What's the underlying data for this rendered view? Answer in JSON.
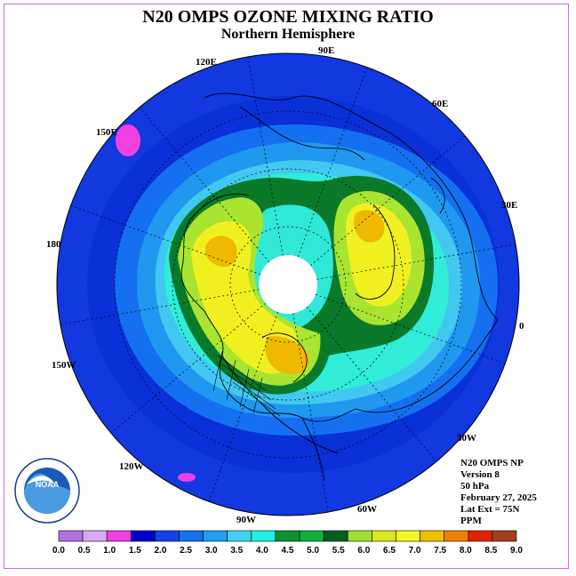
{
  "title": "N20 OMPS OZONE MIXING RATIO",
  "subtitle": "Northern Hemisphere",
  "longitude_labels": [
    {
      "text": "90E"
    },
    {
      "text": "60E"
    },
    {
      "text": "30E"
    },
    {
      "text": "0"
    },
    {
      "text": "30W"
    },
    {
      "text": "60W"
    },
    {
      "text": "90W"
    },
    {
      "text": "120W"
    },
    {
      "text": "150W"
    },
    {
      "text": "180"
    },
    {
      "text": "150E"
    },
    {
      "text": "120E"
    }
  ],
  "info": {
    "line1": "N20 OMPS NP",
    "line2": "Version 8",
    "line3": "50 hPa",
    "line4": "February 27, 2025",
    "line5": "Lat Ext = 75N",
    "line6": "PPM"
  },
  "logo": {
    "text": "NOAA"
  },
  "colorbar": {
    "ticks": [
      "0.0",
      "0.5",
      "1.0",
      "1.5",
      "2.0",
      "2.5",
      "3.0",
      "3.5",
      "4.0",
      "4.5",
      "5.0",
      "5.5",
      "6.0",
      "6.5",
      "7.0",
      "7.5",
      "8.0",
      "8.5",
      "9.0"
    ],
    "colors": [
      "#b070e0",
      "#d8a8f0",
      "#f040e0",
      "#0000c8",
      "#1040e8",
      "#1470f0",
      "#20a0f0",
      "#40d0f0",
      "#20f0e0",
      "#109030",
      "#10b040",
      "#006020",
      "#a0e030",
      "#d8e820",
      "#f8f820",
      "#f0c000",
      "#f08000",
      "#e02000",
      "#a04020"
    ]
  }
}
